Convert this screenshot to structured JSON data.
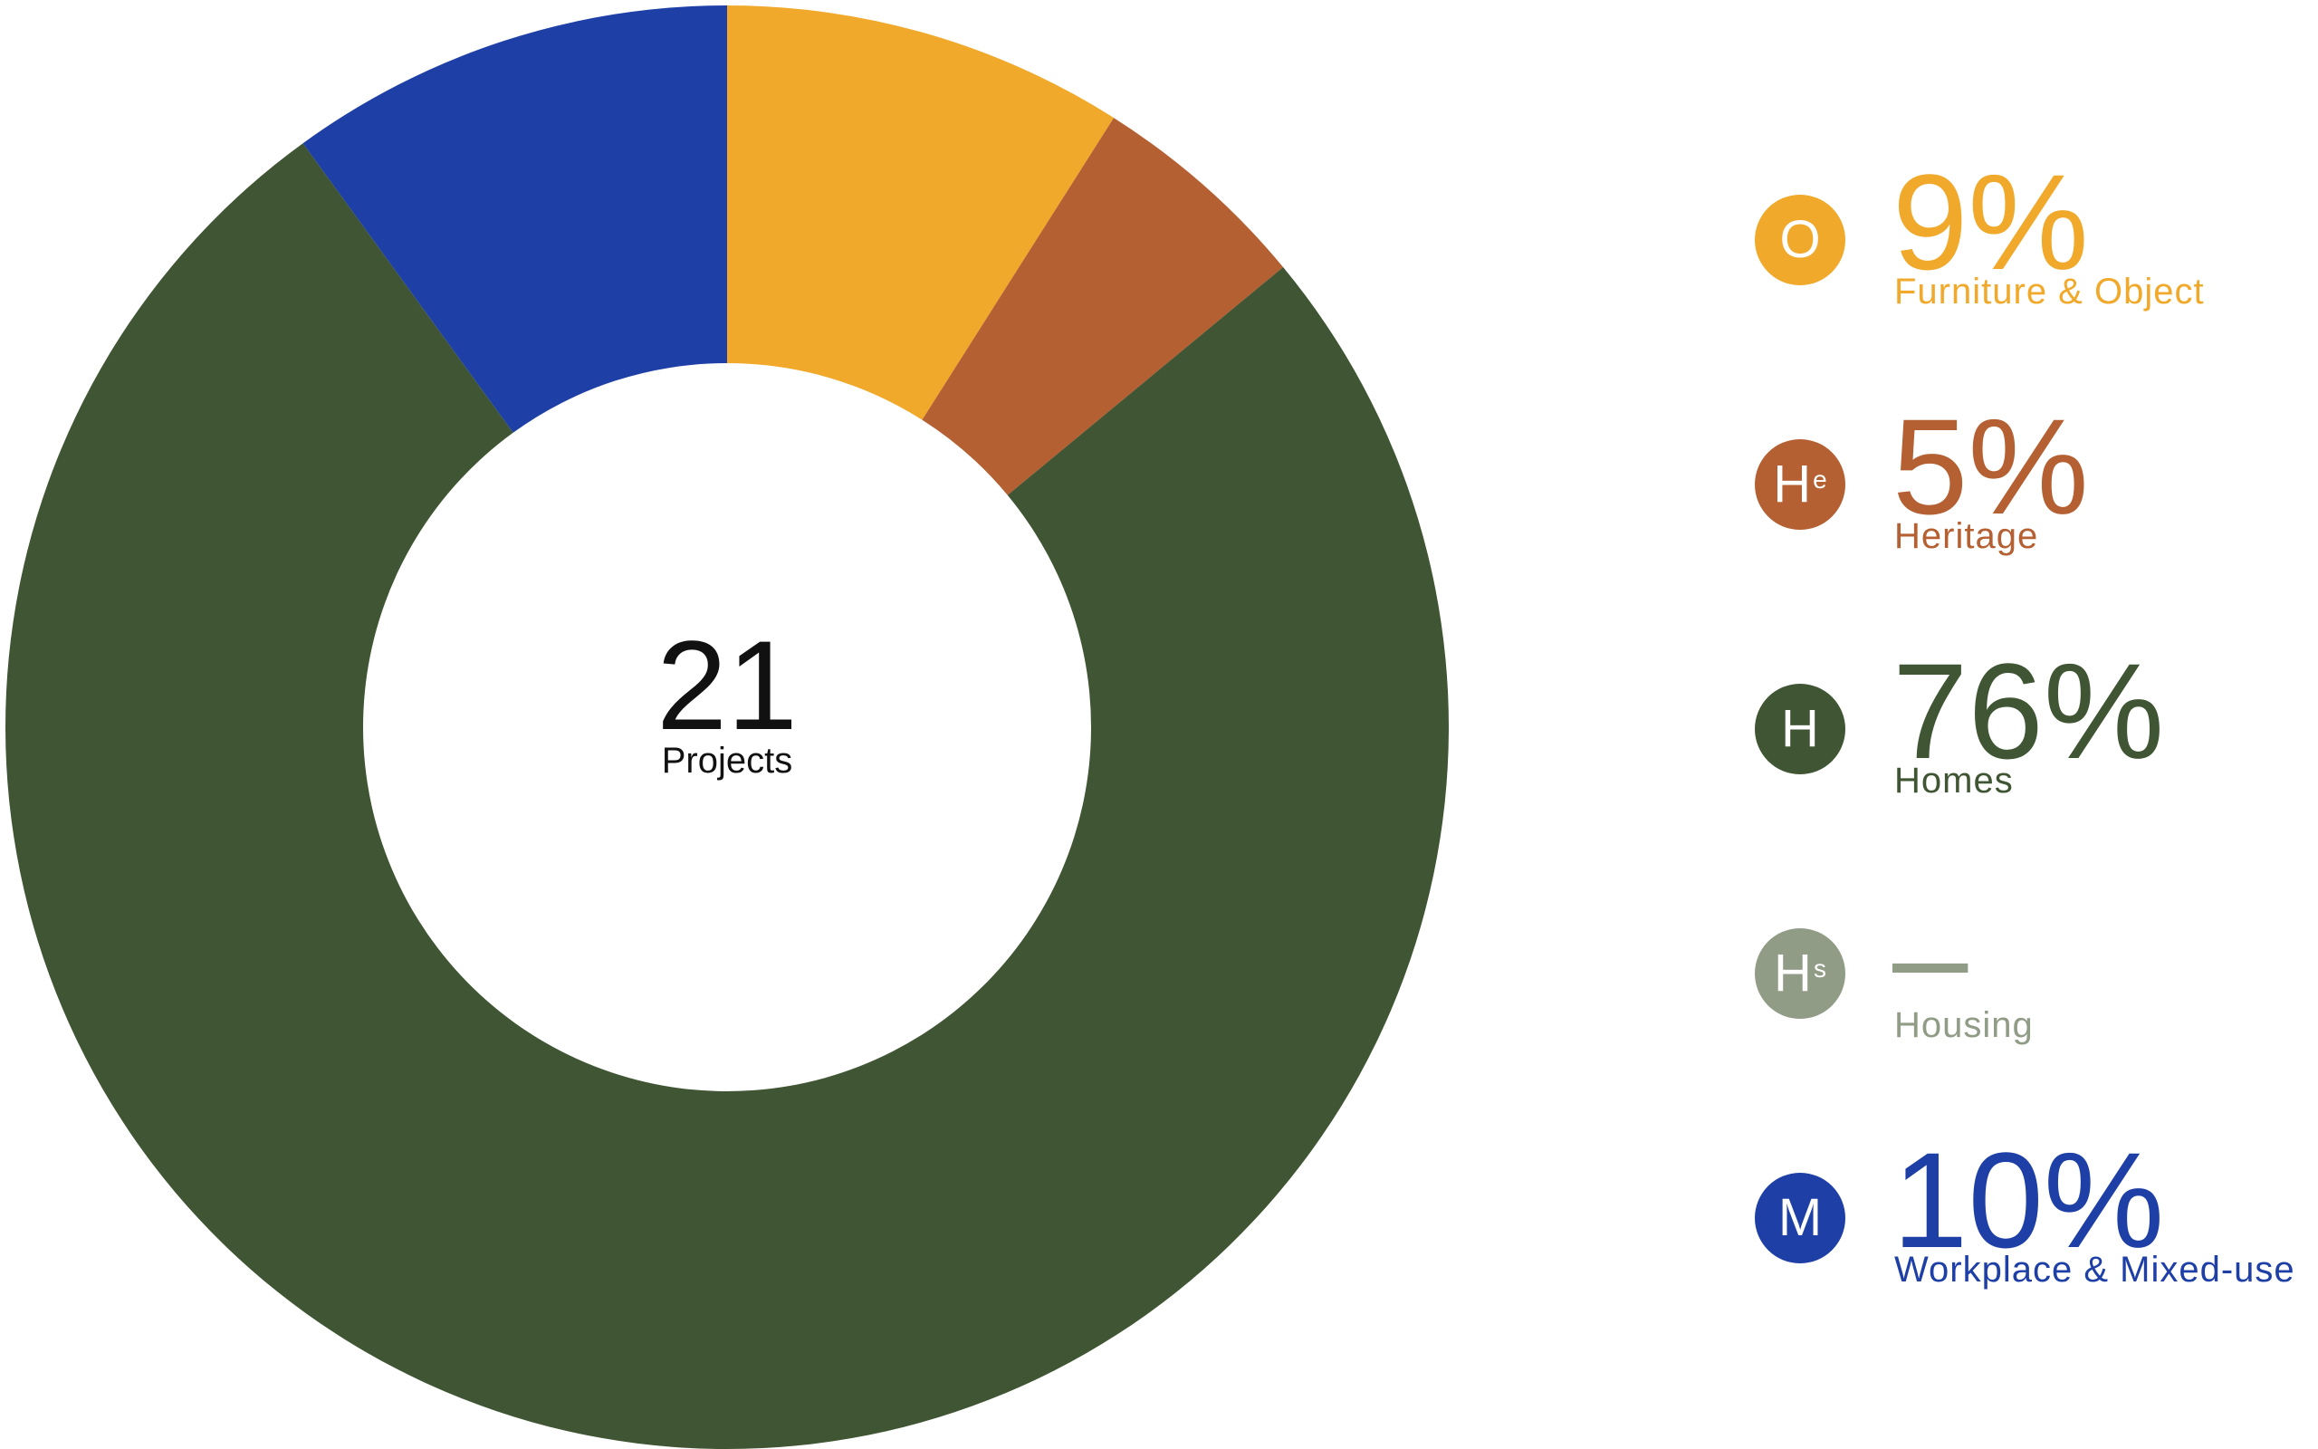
{
  "chart_data": {
    "type": "pie",
    "donut": true,
    "center": {
      "value": "21",
      "label": "Projects"
    },
    "slices": [
      {
        "key": "furniture",
        "badge": "O",
        "badge_sub": "",
        "label": "Furniture & Object",
        "value_label": "9%",
        "value": 9,
        "color": "#F0A92B"
      },
      {
        "key": "heritage",
        "badge": "H",
        "badge_sub": "e",
        "label": "Heritage",
        "value_label": "5%",
        "value": 5,
        "color": "#B46032"
      },
      {
        "key": "homes",
        "badge": "H",
        "badge_sub": "",
        "label": "Homes",
        "value_label": "76%",
        "value": 76,
        "color": "#405533"
      },
      {
        "key": "housing",
        "badge": "H",
        "badge_sub": "s",
        "label": "Housing",
        "value_label": "–",
        "value": 0,
        "color": "#919C87"
      },
      {
        "key": "workplace",
        "badge": "M",
        "badge_sub": "",
        "label": "Workplace & Mixed-use",
        "value_label": "10%",
        "value": 10,
        "color": "#1E3FA6"
      }
    ],
    "legend_position": "right"
  }
}
